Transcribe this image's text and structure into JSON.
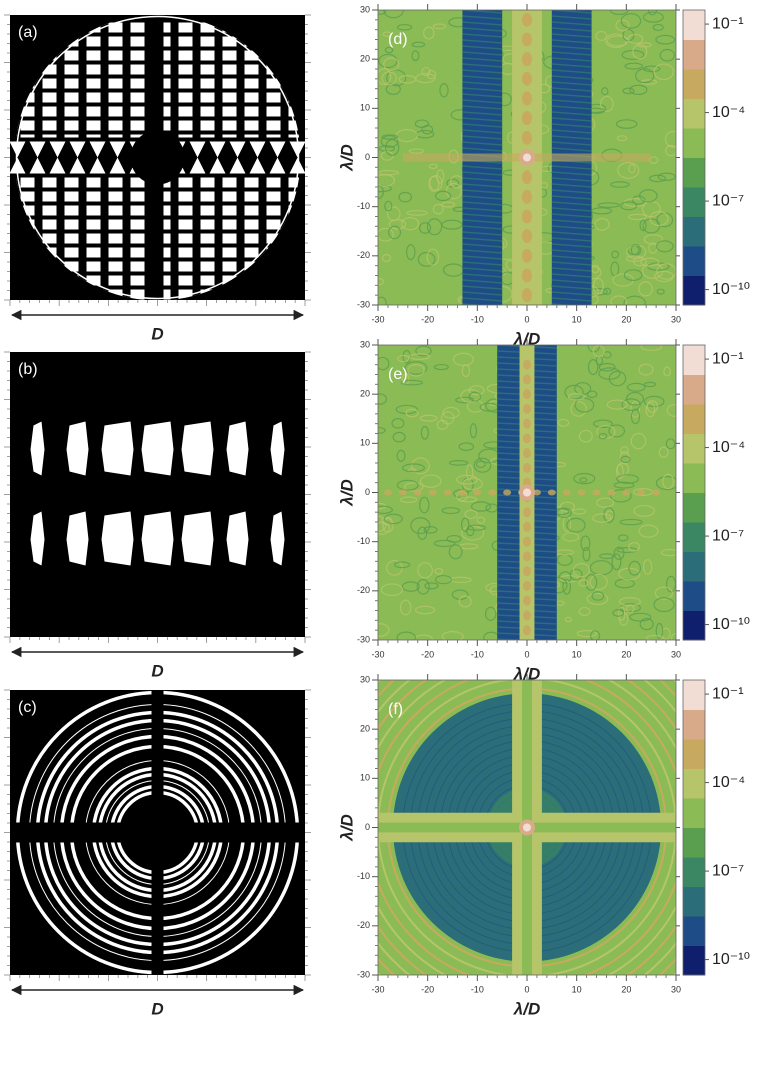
{
  "panels": [
    {
      "label": "(a)",
      "axis_label": "D"
    },
    {
      "label": "(b)",
      "axis_label": "D"
    },
    {
      "label": "(c)",
      "axis_label": "D"
    }
  ],
  "chart_data": [
    {
      "type": "heatmap",
      "label": "(d)",
      "xlabel": "λ/D",
      "ylabel": "λ/D",
      "xlim": [
        -30,
        30
      ],
      "ylim": [
        -30,
        30
      ],
      "xticks": [
        -30,
        -20,
        -10,
        0,
        10,
        20,
        30
      ],
      "yticks": [
        -30,
        -20,
        -10,
        0,
        10,
        20,
        30
      ],
      "colorbar": {
        "scale": "log",
        "lim": [
          3e-11,
          0.3
        ],
        "ticks": [
          {
            "value": 0.1,
            "label": "10⁻¹"
          },
          {
            "value": 0.0001,
            "label": "10⁻⁴"
          },
          {
            "value": 1e-07,
            "label": "10⁻⁷"
          },
          {
            "value": 1e-10,
            "label": "10⁻¹⁰"
          }
        ],
        "colors": [
          "#0f1f6e",
          "#1d4c86",
          "#2b6d78",
          "#3b8763",
          "#5a9f4f",
          "#8bbb55",
          "#b6c46a",
          "#c7aa5f",
          "#d9aa8a",
          "#f2ddd5"
        ]
      }
    },
    {
      "type": "heatmap",
      "label": "(e)",
      "xlabel": "λ/D",
      "ylabel": "λ/D",
      "xlim": [
        -30,
        30
      ],
      "ylim": [
        -30,
        30
      ],
      "xticks": [
        -30,
        -20,
        -10,
        0,
        10,
        20,
        30
      ],
      "yticks": [
        -30,
        -20,
        -10,
        0,
        10,
        20,
        30
      ],
      "colorbar": {
        "scale": "log",
        "lim": [
          3e-11,
          0.3
        ],
        "ticks": [
          {
            "value": 0.1,
            "label": "10⁻¹"
          },
          {
            "value": 0.0001,
            "label": "10⁻⁴"
          },
          {
            "value": 1e-07,
            "label": "10⁻⁷"
          },
          {
            "value": 1e-10,
            "label": "10⁻¹⁰"
          }
        ],
        "colors": [
          "#0f1f6e",
          "#1d4c86",
          "#2b6d78",
          "#3b8763",
          "#5a9f4f",
          "#8bbb55",
          "#b6c46a",
          "#c7aa5f",
          "#d9aa8a",
          "#f2ddd5"
        ]
      }
    },
    {
      "type": "heatmap",
      "label": "(f)",
      "xlabel": "λ/D",
      "ylabel": "λ/D",
      "xlim": [
        -30,
        30
      ],
      "ylim": [
        -30,
        30
      ],
      "xticks": [
        -30,
        -20,
        -10,
        0,
        10,
        20,
        30
      ],
      "yticks": [
        -30,
        -20,
        -10,
        0,
        10,
        20,
        30
      ],
      "colorbar": {
        "scale": "log",
        "lim": [
          3e-11,
          0.3
        ],
        "ticks": [
          {
            "value": 0.1,
            "label": "10⁻¹"
          },
          {
            "value": 0.0001,
            "label": "10⁻⁴"
          },
          {
            "value": 1e-07,
            "label": "10⁻⁷"
          },
          {
            "value": 1e-10,
            "label": "10⁻¹⁰"
          }
        ],
        "colors": [
          "#0f1f6e",
          "#1d4c86",
          "#2b6d78",
          "#3b8763",
          "#5a9f4f",
          "#8bbb55",
          "#b6c46a",
          "#c7aa5f",
          "#d9aa8a",
          "#f2ddd5"
        ]
      }
    }
  ]
}
